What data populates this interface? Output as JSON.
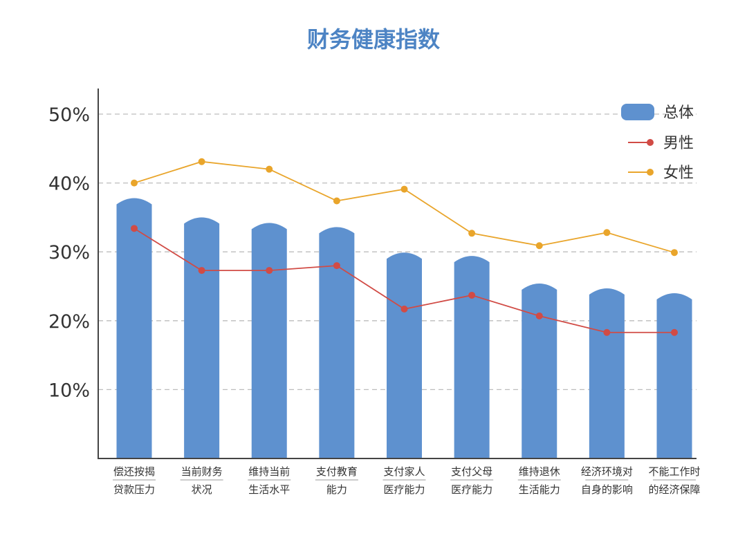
{
  "chart_data": {
    "type": "bar",
    "title": "财务健康指数",
    "categories": [
      [
        "偿还按揭",
        "贷款压力"
      ],
      [
        "当前财务",
        "状况"
      ],
      [
        "维持当前",
        "生活水平"
      ],
      [
        "支付教育",
        "能力"
      ],
      [
        "支付家人",
        "医疗能力"
      ],
      [
        "支付父母",
        "医疗能力"
      ],
      [
        "维持退休",
        "生活能力"
      ],
      [
        "经济环境对",
        "自身的影响"
      ],
      [
        "不能工作时",
        "的经济保障"
      ]
    ],
    "series": [
      {
        "name": "总体",
        "type": "bar",
        "color": "#5e91cf",
        "values": [
          37.8,
          35.0,
          34.2,
          33.6,
          29.9,
          29.4,
          25.4,
          24.7,
          24.0
        ]
      },
      {
        "name": "男性",
        "type": "line",
        "color": "#d14b45",
        "values": [
          33.4,
          27.3,
          27.3,
          28.0,
          21.7,
          23.7,
          20.7,
          18.3,
          18.3
        ]
      },
      {
        "name": "女性",
        "type": "line",
        "color": "#e9a52b",
        "values": [
          40.0,
          43.1,
          42.0,
          37.4,
          39.1,
          32.7,
          30.9,
          32.8,
          29.9
        ]
      }
    ],
    "y_ticks": [
      10,
      20,
      30,
      40,
      50
    ],
    "y_tick_labels": [
      "10%",
      "20%",
      "30%",
      "40%",
      "50%"
    ],
    "ylim": [
      0,
      53.5
    ],
    "grid": true,
    "legend_position": "top-right"
  }
}
